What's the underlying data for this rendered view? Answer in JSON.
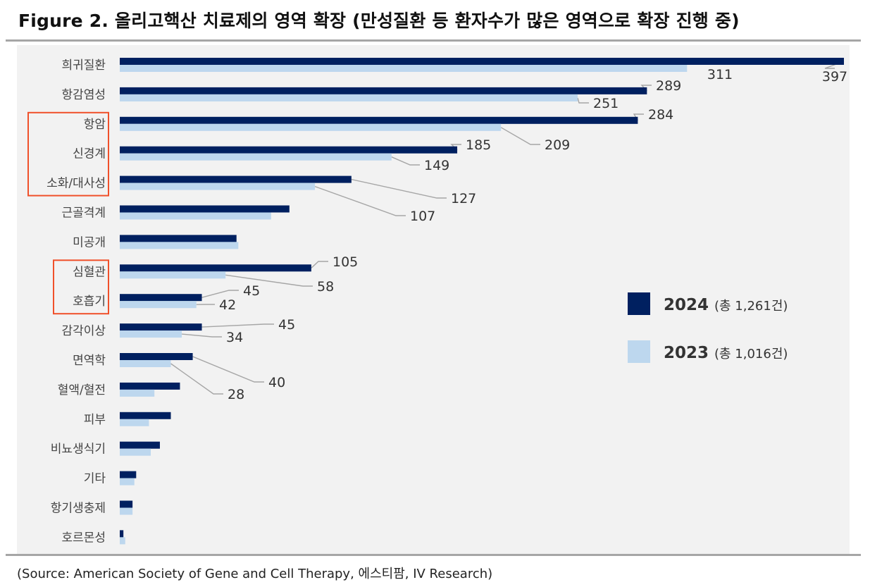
{
  "title": "Figure 2. 올리고핵산 치료제의 영역 확장 (만성질환 등 환자수가 많은 영역으로 확장 진행 중)",
  "source": "(Source: American Society of Gene and Cell Therapy, 에스티팜, IV Research)",
  "colors": {
    "s2024": "#002060",
    "s2023": "#bdd7ee",
    "plot_bg": "#f2f2f2",
    "highlight": "#f0502a",
    "leader": "#a6a6a6"
  },
  "chart_data": {
    "type": "bar",
    "orientation": "horizontal",
    "categories": [
      "희귀질환",
      "항감염성",
      "항암",
      "신경계",
      "소화/대사성",
      "근골격계",
      "미공개",
      "심혈관",
      "호흡기",
      "감각이상",
      "면역학",
      "혈액/혈전",
      "피부",
      "비뇨생식기",
      "기타",
      "항기생충제",
      "호르몬성"
    ],
    "series": [
      {
        "name": "2024",
        "total_label": "(총 1,261건)",
        "values": [
          397,
          289,
          284,
          185,
          127,
          93,
          64,
          105,
          45,
          45,
          40,
          33,
          28,
          22,
          9,
          7,
          2
        ],
        "labels": [
          "397",
          "289",
          "284",
          "185",
          "127",
          "",
          "",
          "105",
          "45",
          "45",
          "40",
          "",
          "",
          "",
          "",
          "",
          ""
        ]
      },
      {
        "name": "2023",
        "total_label": "(총 1,016건)",
        "values": [
          311,
          251,
          209,
          149,
          107,
          83,
          65,
          58,
          42,
          34,
          28,
          19,
          16,
          17,
          8,
          7,
          3
        ],
        "labels": [
          "311",
          "251",
          "209",
          "149",
          "107",
          "",
          "",
          "58",
          "42",
          "34",
          "28",
          "",
          "",
          "",
          "",
          "",
          ""
        ]
      }
    ],
    "xlim": [
      0,
      397
    ],
    "grid": false,
    "legend_position": "right-middle",
    "highlight_groups": [
      [
        "항암",
        "신경계",
        "소화/대사성"
      ],
      [
        "심혈관",
        "호흡기"
      ]
    ]
  }
}
